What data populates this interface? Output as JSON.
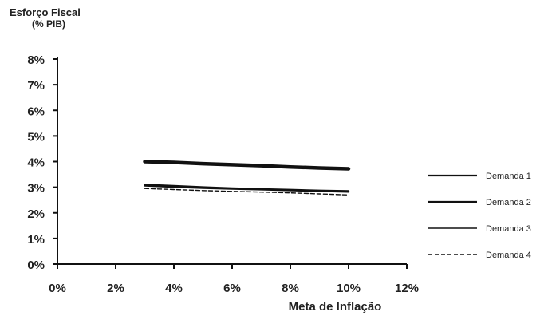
{
  "chart_data": {
    "type": "line",
    "ylabel_line1": "Esforço Fiscal",
    "ylabel_line2": "(% PIB)",
    "xlabel": "Meta de Inflação",
    "xlim": [
      0,
      12
    ],
    "ylim": [
      0,
      8
    ],
    "x_ticks": [
      "0%",
      "2%",
      "4%",
      "6%",
      "8%",
      "10%",
      "12%"
    ],
    "y_ticks": [
      "0%",
      "1%",
      "2%",
      "3%",
      "4%",
      "5%",
      "6%",
      "7%",
      "8%"
    ],
    "grid": false,
    "legend_position": "right",
    "x": [
      3,
      4,
      5,
      6,
      7,
      8,
      9,
      10
    ],
    "series": [
      {
        "name": "Demanda 1",
        "values": [
          4.0,
          3.97,
          3.92,
          3.88,
          3.84,
          3.79,
          3.75,
          3.72
        ],
        "style": "solid",
        "width": 4.5
      },
      {
        "name": "Demanda 2",
        "values": [
          3.1,
          3.05,
          3.0,
          2.96,
          2.93,
          2.9,
          2.87,
          2.85
        ],
        "style": "solid",
        "width": 2.4
      },
      {
        "name": "Demanda 3",
        "values": [
          3.05,
          3.0,
          2.96,
          2.93,
          2.9,
          2.87,
          2.84,
          2.81
        ],
        "style": "solid",
        "width": 1.6
      },
      {
        "name": "Demanda 4",
        "values": [
          2.95,
          2.91,
          2.87,
          2.84,
          2.81,
          2.78,
          2.74,
          2.7
        ],
        "style": "dashed",
        "width": 1.4
      }
    ]
  }
}
